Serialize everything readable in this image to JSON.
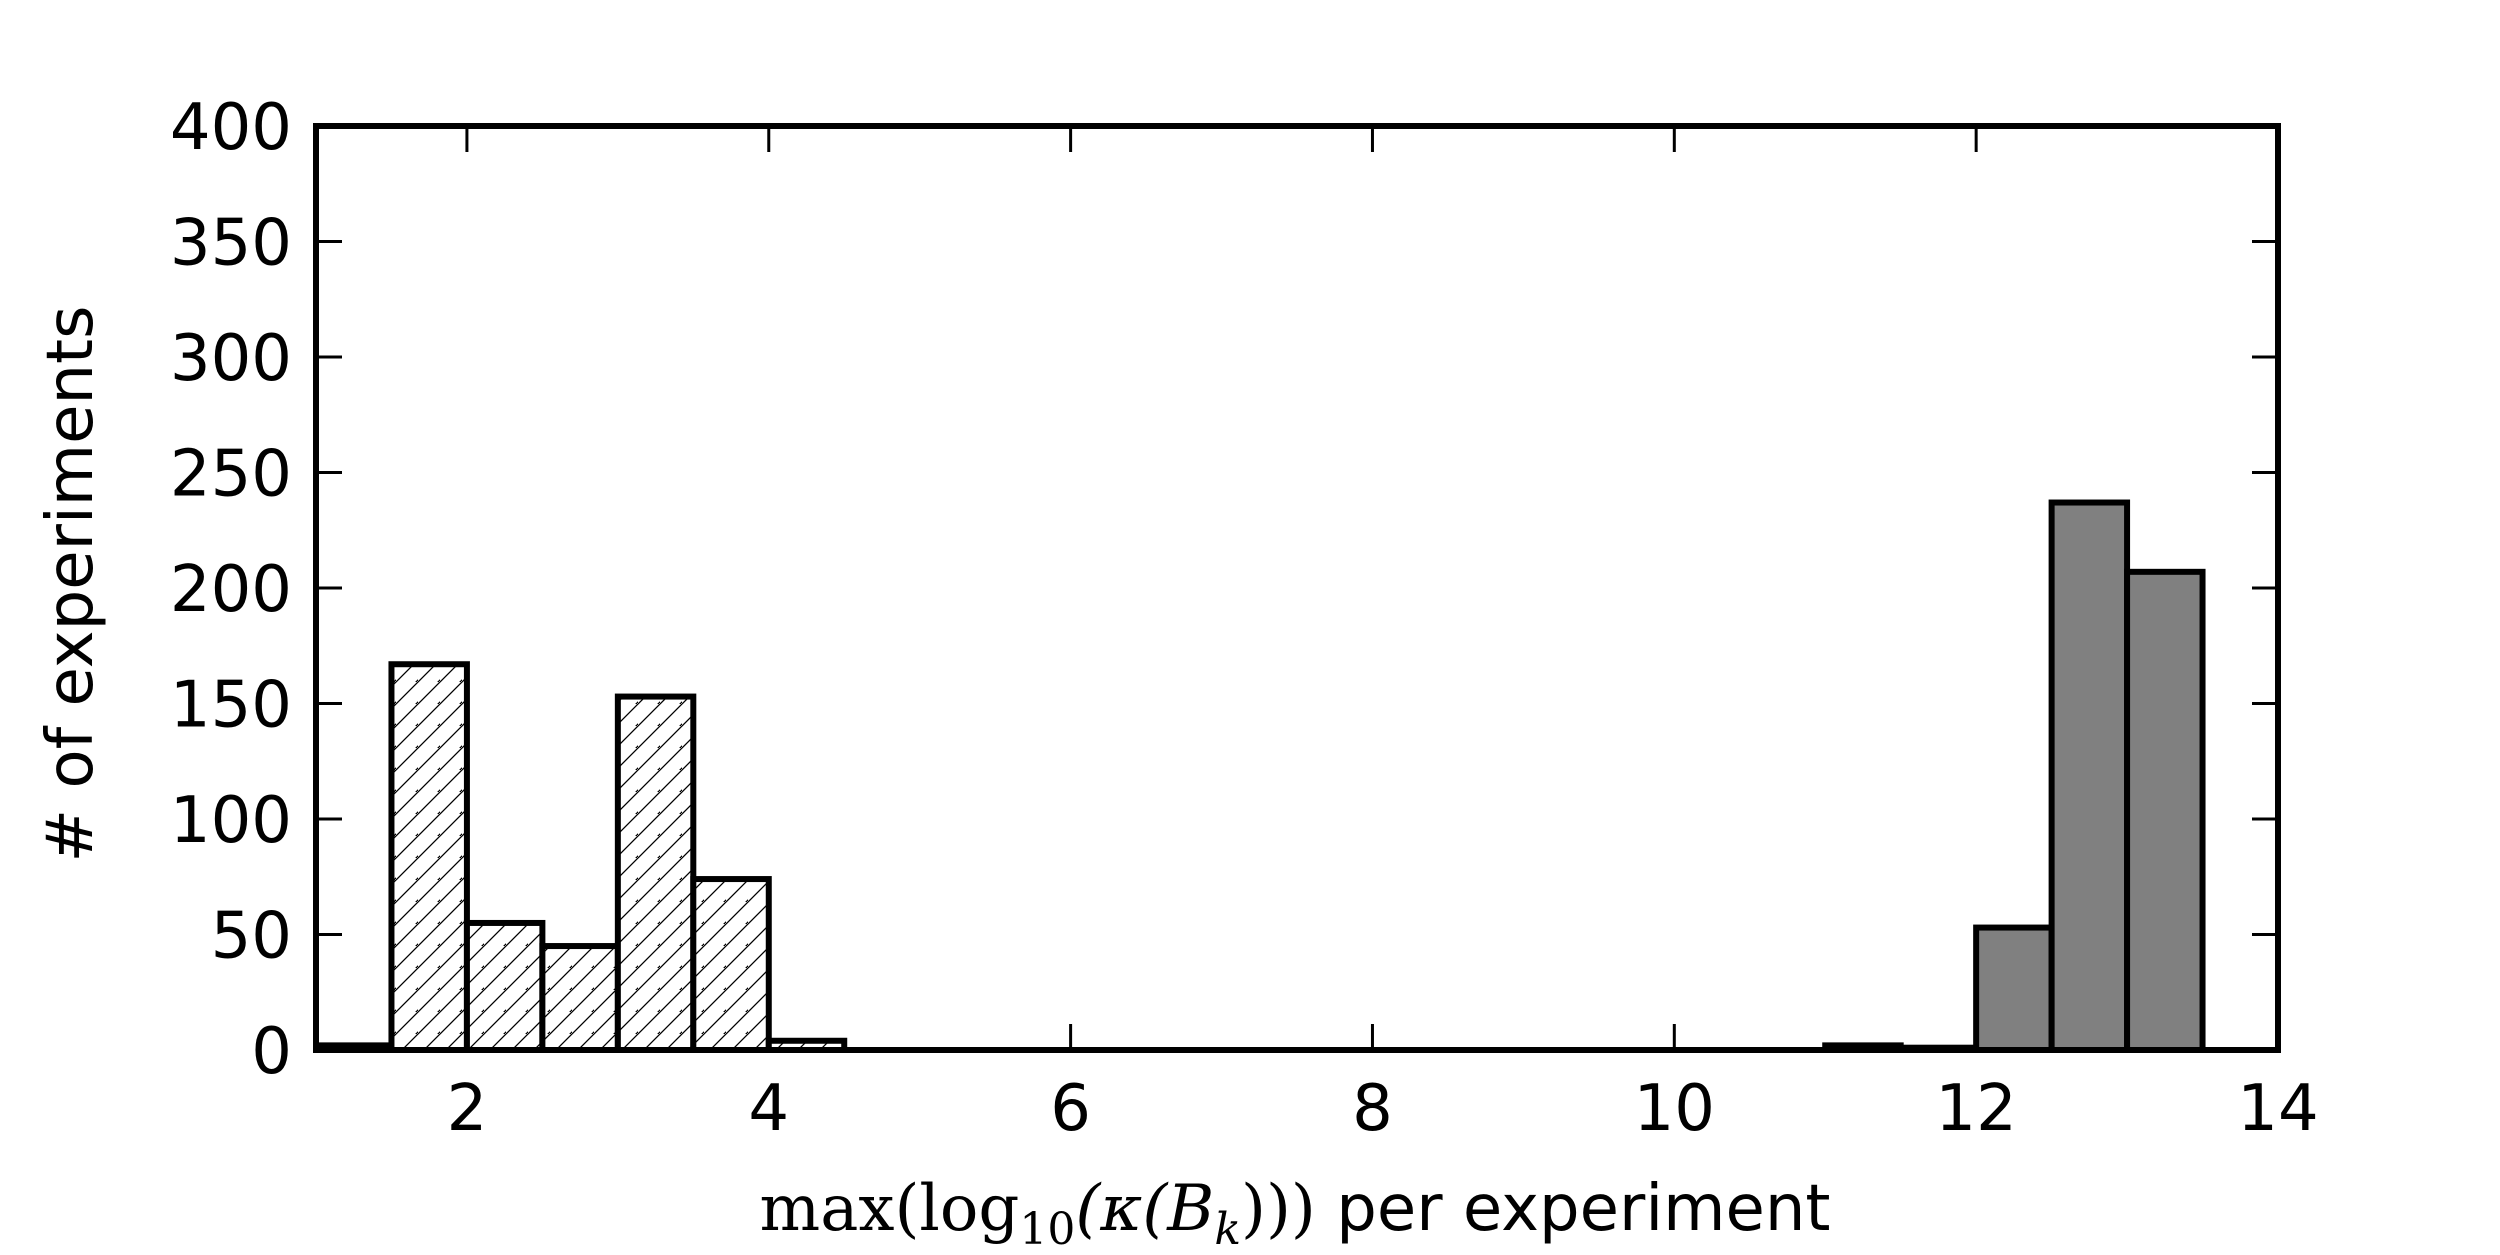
{
  "chart_data": {
    "type": "bar",
    "title": "",
    "xlabel": {
      "parts": [
        {
          "text": "max(log",
          "style": "math"
        },
        {
          "text": "10",
          "style": "math-sub"
        },
        {
          "text": "(κ(B",
          "style": "math-italic-mix"
        },
        {
          "text": "k",
          "style": "math-sub-italic"
        },
        {
          "text": "))) ",
          "style": "math"
        },
        {
          "text": "per experiment",
          "style": "plain"
        }
      ]
    },
    "ylabel": "# of experiments",
    "xlim": [
      1,
      14
    ],
    "ylim": [
      0,
      400
    ],
    "xticks": [
      2,
      4,
      6,
      8,
      10,
      12,
      14
    ],
    "yticks": [
      0,
      50,
      100,
      150,
      200,
      250,
      300,
      350,
      400
    ],
    "grid": false,
    "bin_width": 0.5,
    "series": [
      {
        "fill": "hatched",
        "color": "#ffffff",
        "edge_color": "#000000",
        "bins": [
          {
            "start": 1.0,
            "value": 2
          },
          {
            "start": 1.5,
            "value": 167
          },
          {
            "start": 2.0,
            "value": 55
          },
          {
            "start": 2.5,
            "value": 45
          },
          {
            "start": 3.0,
            "value": 153
          },
          {
            "start": 3.5,
            "value": 74
          },
          {
            "start": 4.0,
            "value": 4
          }
        ]
      },
      {
        "fill": "solid",
        "color": "#808080",
        "edge_color": "#000000",
        "bins": [
          {
            "start": 11.0,
            "value": 2
          },
          {
            "start": 11.5,
            "value": 1
          },
          {
            "start": 12.0,
            "value": 53
          },
          {
            "start": 12.5,
            "value": 237
          },
          {
            "start": 13.0,
            "value": 207
          }
        ]
      }
    ]
  }
}
